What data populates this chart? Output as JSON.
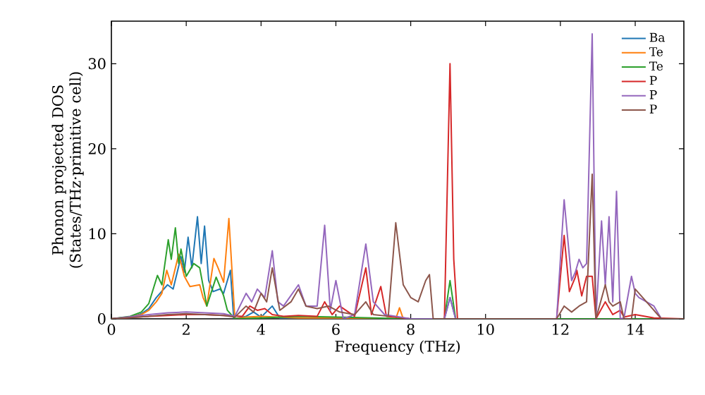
{
  "chart_data": {
    "type": "line",
    "xlabel": "Frequency (THz)",
    "ylabel": "Phonon projected DOS (States/THz·primitive cell)",
    "xlim": [
      0,
      15.3
    ],
    "ylim": [
      0,
      35
    ],
    "xticks": [
      0,
      2,
      4,
      6,
      8,
      10,
      12,
      14
    ],
    "yticks": [
      0,
      10,
      20,
      30
    ],
    "grid": false,
    "legend": "top right",
    "series": [
      {
        "name": "Ba",
        "color": "#1f77b4",
        "x": [
          0,
          0.5,
          0.8,
          1.0,
          1.2,
          1.5,
          1.65,
          1.86,
          1.95,
          2.05,
          2.15,
          2.3,
          2.4,
          2.49,
          2.6,
          2.72,
          2.9,
          3.0,
          3.18,
          3.27,
          3.6,
          3.8,
          4.0,
          4.3,
          4.5,
          5.0,
          6.0,
          7.0,
          8.0,
          8.9,
          9.05,
          9.2
        ],
        "values": [
          0,
          0.2,
          0.6,
          1.2,
          2.5,
          4,
          3.5,
          7.3,
          5.5,
          9.6,
          6,
          12,
          6.5,
          10.9,
          4.5,
          3.2,
          3.5,
          3,
          5.7,
          0,
          0.3,
          0.8,
          0.2,
          1.5,
          0.1,
          0.1,
          0,
          0,
          0,
          0,
          2.5,
          0
        ]
      },
      {
        "name": "Te",
        "color": "#ff7f0e",
        "x": [
          0,
          0.5,
          0.8,
          1.0,
          1.2,
          1.35,
          1.48,
          1.6,
          1.8,
          1.95,
          2.1,
          2.36,
          2.45,
          2.55,
          2.74,
          2.85,
          3.0,
          3.14,
          3.3,
          3.6,
          4.0,
          5,
          6,
          7.6,
          7.7,
          7.8
        ],
        "values": [
          0,
          0.2,
          0.5,
          1,
          2,
          3,
          5.7,
          4,
          7.6,
          5,
          3.8,
          4,
          2.5,
          1.5,
          7.1,
          6,
          4.3,
          11.8,
          0,
          0.2,
          0.3,
          0.1,
          0.1,
          0,
          1.3,
          0
        ]
      },
      {
        "name": "Te",
        "color": "#2ca02c",
        "x": [
          0,
          0.5,
          0.8,
          1.0,
          1.23,
          1.35,
          1.52,
          1.6,
          1.71,
          1.8,
          1.86,
          2.0,
          2.2,
          2.36,
          2.55,
          2.8,
          3.0,
          3.1,
          3.3,
          4,
          5,
          6,
          7,
          8,
          8.9,
          9.05,
          9.2,
          10,
          12,
          14,
          15.3
        ],
        "values": [
          0,
          0.3,
          0.8,
          1.8,
          5.1,
          4,
          9.3,
          7,
          10.7,
          6.5,
          8.2,
          5,
          6.5,
          6,
          1.5,
          4.9,
          2.7,
          1,
          0,
          0.1,
          0.3,
          0.2,
          0.1,
          0,
          0,
          4.5,
          0,
          0,
          0,
          0,
          0
        ]
      },
      {
        "name": "P",
        "color": "#d62728",
        "x": [
          0,
          1,
          1.5,
          2,
          2.5,
          3,
          3.5,
          3.7,
          3.9,
          4.1,
          4.3,
          4.6,
          5,
          5.5,
          5.7,
          5.9,
          6.1,
          6.5,
          6.8,
          6.95,
          7.2,
          7.35,
          7.6,
          8,
          8.9,
          9.05,
          9.15,
          9.25,
          10,
          11.9,
          12.1,
          12.24,
          12.4,
          12.44,
          12.57,
          12.7,
          12.85,
          12.95,
          13.2,
          13.4,
          13.6,
          13.7,
          14,
          14.5,
          15.3
        ],
        "values": [
          0,
          0.3,
          0.4,
          0.5,
          0.5,
          0.4,
          0.3,
          1.5,
          1,
          1.2,
          0.5,
          0.3,
          0.4,
          0.3,
          2,
          0.5,
          1.5,
          0.3,
          6,
          0.5,
          3.8,
          0.3,
          0.2,
          0,
          0,
          30,
          7,
          0,
          0,
          0,
          9.8,
          3.2,
          4.9,
          5.7,
          2.7,
          5,
          5,
          0,
          2,
          0.5,
          1,
          0.2,
          0.5,
          0.1,
          0
        ]
      },
      {
        "name": "P",
        "color": "#9467bd",
        "x": [
          0,
          1,
          1.5,
          2,
          2.5,
          3,
          3.3,
          3.6,
          3.75,
          3.9,
          4.1,
          4.3,
          4.45,
          4.6,
          5.0,
          5.2,
          5.5,
          5.7,
          5.85,
          6.0,
          6.2,
          6.5,
          6.8,
          7.0,
          7.3,
          7.6,
          8,
          8.9,
          9.05,
          9.2,
          10,
          11.9,
          12.1,
          12.3,
          12.4,
          12.5,
          12.6,
          12.7,
          12.85,
          12.95,
          13.1,
          13.2,
          13.3,
          13.4,
          13.5,
          13.6,
          13.7,
          13.9,
          14.0,
          14.1,
          14.3,
          14.5,
          14.7,
          15.3
        ],
        "values": [
          0,
          0.5,
          0.7,
          0.8,
          0.7,
          0.6,
          0.3,
          3,
          2,
          3.5,
          2.5,
          8,
          2,
          1.5,
          4,
          1.5,
          1.5,
          11,
          1,
          4.5,
          0,
          0.5,
          8.8,
          2,
          0.5,
          0.3,
          0,
          0,
          2.5,
          0,
          0,
          0,
          14,
          4.5,
          5.5,
          7,
          6,
          6.5,
          33.5,
          0,
          11.5,
          4,
          12,
          2,
          15,
          0,
          0.1,
          5,
          3,
          2.5,
          2,
          1.5,
          0,
          0
        ]
      },
      {
        "name": "P",
        "color": "#8c564b",
        "x": [
          0,
          1,
          1.5,
          2,
          2.5,
          3,
          3.3,
          3.6,
          3.8,
          4.0,
          4.15,
          4.3,
          4.5,
          4.8,
          5.0,
          5.2,
          5.5,
          5.8,
          6.1,
          6.5,
          6.8,
          7.0,
          7.4,
          7.6,
          7.8,
          8.0,
          8.2,
          8.4,
          8.5,
          8.6,
          9,
          11.9,
          12.1,
          12.3,
          12.5,
          12.7,
          12.85,
          12.95,
          13.2,
          13.3,
          13.4,
          13.6,
          13.7,
          13.9,
          14.0,
          14.2,
          14.4,
          14.6,
          14.7,
          15.3
        ],
        "values": [
          0,
          0.3,
          0.5,
          0.6,
          0.5,
          0.4,
          0.2,
          1.5,
          0.8,
          3,
          2,
          6,
          1,
          2,
          3.5,
          1.5,
          1.2,
          1.5,
          0.8,
          0.5,
          2,
          0.5,
          0.3,
          11.3,
          4,
          2.5,
          2,
          4.5,
          5.2,
          0,
          0,
          0,
          1.5,
          0.8,
          1.5,
          2,
          17,
          0,
          4,
          2,
          1.5,
          2,
          0,
          0,
          3.5,
          2.5,
          1.5,
          0.5,
          0,
          0
        ]
      }
    ]
  }
}
